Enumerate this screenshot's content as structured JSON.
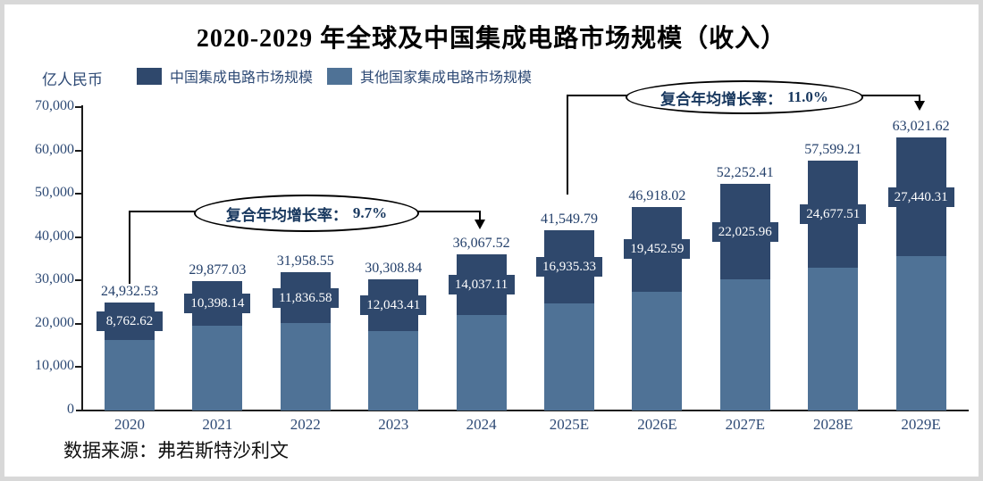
{
  "title": "2020-2029 年全球及中国集成电路市场规模（收入）",
  "y_axis_unit": "亿人民币",
  "source": "数据来源：弗若斯特沙利文",
  "legend": [
    {
      "label": "中国集成电路市场规模",
      "color": "#2f486c"
    },
    {
      "label": "其他国家集成电路市场规模",
      "color": "#4f7296"
    }
  ],
  "annotations": [
    {
      "text": "复合年均增长率：",
      "value": "9.7%",
      "from": "2020",
      "to": "2024"
    },
    {
      "text": "复合年均增长率：",
      "value": "11.0%",
      "from": "2025E",
      "to": "2029E"
    }
  ],
  "colors": {
    "china_bar": "#2f486c",
    "other_bar": "#4f7296",
    "axis_text": "#2e4a75",
    "value_text": "#24406b",
    "frame": "#d8d8d8"
  },
  "chart_data": {
    "type": "bar",
    "stacked": true,
    "title": "2020-2029 年全球及中国集成电路市场规模（收入）",
    "ylabel": "亿人民币",
    "xlabel": "",
    "ylim": [
      0,
      70000
    ],
    "y_tick_step": 10000,
    "y_ticks": [
      "0",
      "10,000",
      "20,000",
      "30,000",
      "40,000",
      "50,000",
      "60,000",
      "70,000"
    ],
    "grid": false,
    "legend_position": "top",
    "categories": [
      "2020",
      "2021",
      "2022",
      "2023",
      "2024",
      "2025E",
      "2026E",
      "2027E",
      "2028E",
      "2029E"
    ],
    "series": [
      {
        "name": "中国集成电路市场规模",
        "color": "#2f486c",
        "values": [
          8762.62,
          10398.14,
          11836.58,
          12043.41,
          14037.11,
          16935.33,
          19452.59,
          22025.96,
          24677.51,
          27440.31
        ],
        "labels": [
          "8,762.62",
          "10,398.14",
          "11,836.58",
          "12,043.41",
          "14,037.11",
          "16,935.33",
          "19,452.59",
          "22,025.96",
          "24,677.51",
          "27,440.31"
        ]
      },
      {
        "name": "其他国家集成电路市场规模",
        "color": "#4f7296"
      }
    ],
    "totals": [
      24932.53,
      29877.03,
      31958.55,
      30308.84,
      36067.52,
      41549.79,
      46918.02,
      52252.41,
      57599.21,
      63021.62
    ],
    "total_labels": [
      "24,932.53",
      "29,877.03",
      "31,958.55",
      "30,308.84",
      "36,067.52",
      "41,549.79",
      "46,918.02",
      "52,252.41",
      "57,599.21",
      "63,021.62"
    ]
  }
}
